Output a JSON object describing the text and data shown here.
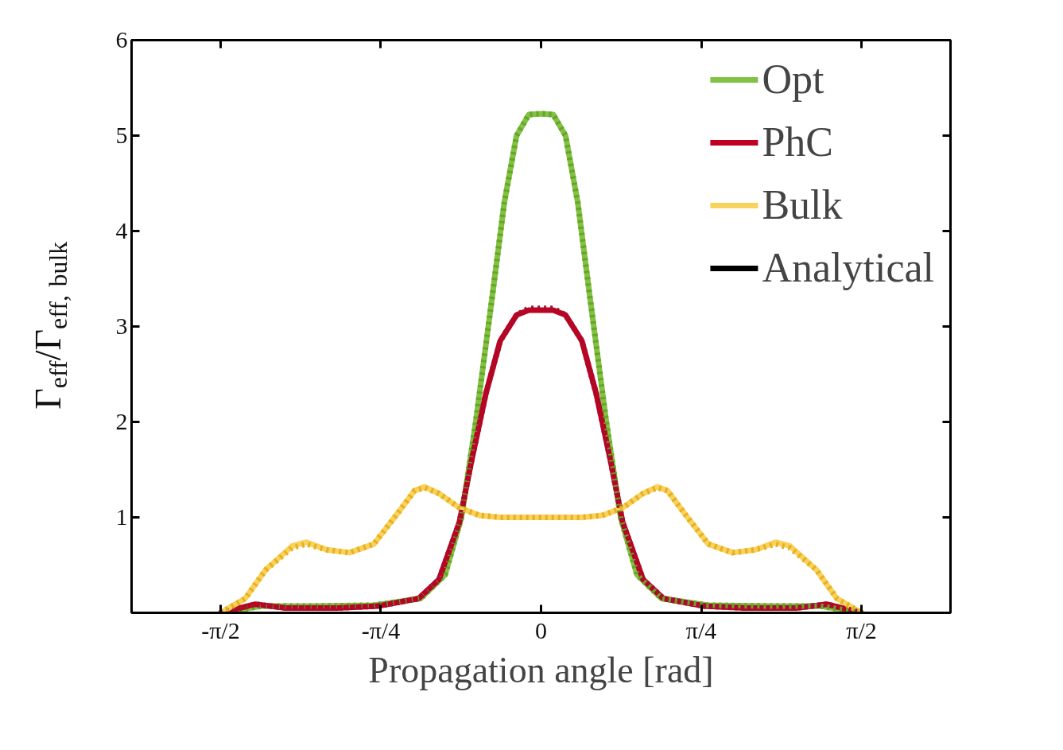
{
  "chart_data": {
    "type": "line",
    "xlabel": "Propagation angle [rad]",
    "ylabel": "Γ$_{eff}$/Γ$_{eff, bulk}$",
    "xlim": [
      -2.007,
      2.007
    ],
    "ylim": [
      0,
      6
    ],
    "xticks": [
      {
        "value": -1.5708,
        "label": "-π/2"
      },
      {
        "value": -0.7854,
        "label": "-π/4"
      },
      0,
      {
        "value": 0.7854,
        "label": "π/4"
      },
      {
        "value": 1.5708,
        "label": "π/2"
      }
    ],
    "yticks": [
      1,
      2,
      3,
      4,
      5,
      6
    ],
    "grid": false,
    "legend": "top right",
    "marker": "none",
    "series": [
      {
        "name": "Opt",
        "color": "#80c342",
        "line_style": "solid",
        "x": [
          -1.571,
          -1.37,
          -1.13,
          -0.82,
          -0.59,
          -0.47,
          -0.39,
          -0.32,
          -0.24,
          -0.18,
          -0.12,
          -0.06,
          0,
          0.06,
          0.12,
          0.18,
          0.24,
          0.32,
          0.39,
          0.47,
          0.59,
          0.82,
          1.13,
          1.37,
          1.571
        ],
        "values": [
          0,
          0.07,
          0.07,
          0.08,
          0.15,
          0.4,
          1.0,
          2.0,
          3.3,
          4.3,
          5.0,
          5.22,
          5.23,
          5.22,
          5.0,
          4.3,
          3.3,
          2.0,
          1.0,
          0.4,
          0.15,
          0.08,
          0.07,
          0.07,
          0
        ]
      },
      {
        "name": "PhC",
        "color": "#c00020",
        "line_style": "solid",
        "x": [
          -1.571,
          -1.4,
          -1.25,
          -1.0,
          -0.8,
          -0.6,
          -0.5,
          -0.4,
          -0.34,
          -0.27,
          -0.2,
          -0.12,
          -0.06,
          0,
          0.06,
          0.12,
          0.2,
          0.27,
          0.34,
          0.4,
          0.5,
          0.6,
          0.8,
          1.0,
          1.25,
          1.4,
          1.571
        ],
        "values": [
          0,
          0.09,
          0.05,
          0.05,
          0.07,
          0.15,
          0.35,
          0.95,
          1.6,
          2.3,
          2.85,
          3.12,
          3.17,
          3.17,
          3.17,
          3.12,
          2.85,
          2.3,
          1.6,
          0.95,
          0.35,
          0.15,
          0.07,
          0.05,
          0.05,
          0.09,
          0
        ]
      },
      {
        "name": "Bulk",
        "color": "#f9d25c",
        "line_style": "solid",
        "x": [
          -1.571,
          -1.45,
          -1.35,
          -1.22,
          -1.15,
          -1.05,
          -0.94,
          -0.82,
          -0.7,
          -0.62,
          -0.57,
          -0.5,
          -0.4,
          -0.3,
          -0.2,
          0,
          0.2,
          0.3,
          0.4,
          0.5,
          0.57,
          0.62,
          0.7,
          0.82,
          0.94,
          1.05,
          1.15,
          1.22,
          1.35,
          1.45,
          1.571
        ],
        "values": [
          0,
          0.15,
          0.45,
          0.7,
          0.74,
          0.66,
          0.63,
          0.72,
          1.05,
          1.28,
          1.32,
          1.25,
          1.1,
          1.02,
          1.0,
          1.0,
          1.0,
          1.02,
          1.1,
          1.25,
          1.32,
          1.28,
          1.05,
          0.72,
          0.63,
          0.66,
          0.74,
          0.7,
          0.45,
          0.15,
          0
        ]
      },
      {
        "name": "Analytical",
        "color": "#000000",
        "line_style": "solid",
        "values": [
          null
        ]
      },
      {
        "color": "#6aa32a",
        "line_style": "dotted",
        "x": [
          -1.571,
          -1.37,
          -1.13,
          -0.82,
          -0.59,
          -0.47,
          -0.39,
          -0.32,
          -0.24,
          -0.18,
          -0.12,
          -0.06,
          0,
          0.06,
          0.12,
          0.18,
          0.24,
          0.32,
          0.39,
          0.47,
          0.59,
          0.82,
          1.13,
          1.37,
          1.571
        ],
        "values": [
          0,
          0.07,
          0.07,
          0.08,
          0.15,
          0.4,
          1.0,
          2.0,
          3.3,
          4.3,
          5.0,
          5.22,
          5.23,
          5.22,
          5.0,
          4.3,
          3.3,
          2.0,
          1.0,
          0.4,
          0.15,
          0.08,
          0.07,
          0.07,
          0
        ]
      },
      {
        "color": "#a01030",
        "line_style": "dotted",
        "x": [
          -1.571,
          -1.4,
          -1.25,
          -1.0,
          -0.8,
          -0.6,
          -0.5,
          -0.4,
          -0.34,
          -0.27,
          -0.2,
          -0.12,
          -0.06,
          0,
          0.06,
          0.12,
          0.2,
          0.27,
          0.34,
          0.4,
          0.5,
          0.6,
          0.8,
          1.0,
          1.25,
          1.4,
          1.571
        ],
        "values": [
          0,
          0.09,
          0.05,
          0.05,
          0.07,
          0.15,
          0.35,
          0.95,
          1.6,
          2.3,
          2.85,
          3.12,
          3.19,
          3.19,
          3.19,
          3.12,
          2.85,
          2.3,
          1.6,
          0.95,
          0.35,
          0.15,
          0.07,
          0.05,
          0.05,
          0.09,
          0
        ]
      },
      {
        "color": "#e8b020",
        "line_style": "dotted",
        "x": [
          -1.571,
          -1.45,
          -1.35,
          -1.22,
          -1.15,
          -1.05,
          -0.94,
          -0.82,
          -0.7,
          -0.62,
          -0.57,
          -0.5,
          -0.4,
          -0.3,
          -0.2,
          0,
          0.2,
          0.3,
          0.4,
          0.5,
          0.57,
          0.62,
          0.7,
          0.82,
          0.94,
          1.05,
          1.15,
          1.22,
          1.35,
          1.45,
          1.571
        ],
        "values": [
          0,
          0.15,
          0.45,
          0.68,
          0.72,
          0.66,
          0.63,
          0.72,
          1.05,
          1.28,
          1.31,
          1.25,
          1.1,
          1.02,
          1.0,
          1.0,
          1.0,
          1.02,
          1.1,
          1.25,
          1.31,
          1.28,
          1.05,
          0.72,
          0.63,
          0.66,
          0.72,
          0.68,
          0.45,
          0.15,
          0
        ]
      }
    ]
  }
}
